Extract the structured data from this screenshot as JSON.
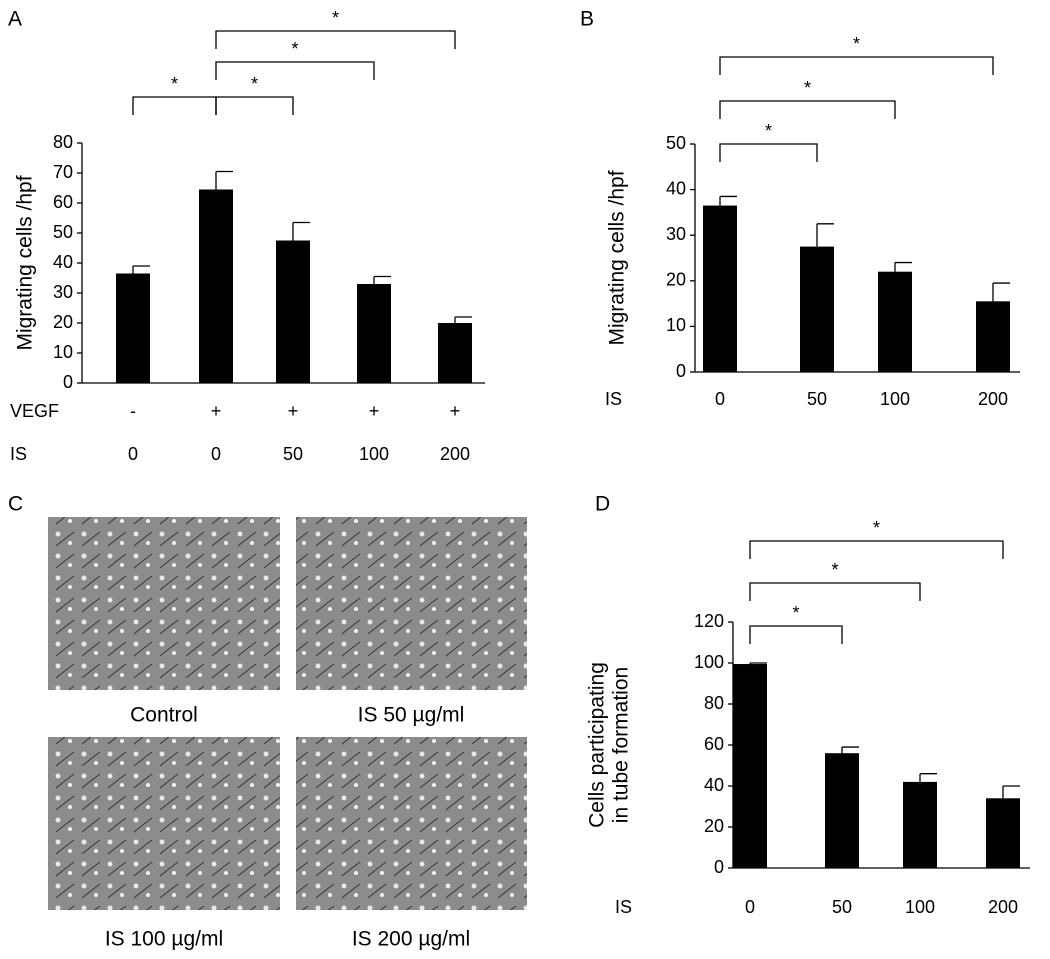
{
  "chart_data": [
    {
      "type": "bar",
      "label": "A",
      "ylabel": [
        "Migrating cells /hpf"
      ],
      "color": "#000000",
      "category_label": "IS",
      "categories": [
        "0",
        "0",
        "50",
        "100",
        "200"
      ],
      "vegf_label": "VEGF",
      "vegf": [
        "-",
        "+",
        "+",
        "+",
        "+"
      ],
      "values": [
        36.5,
        64.5,
        47.5,
        33,
        20
      ],
      "errors": [
        2.5,
        6,
        6,
        2.5,
        2
      ],
      "ylim": [
        0,
        80
      ],
      "yticks": [
        0,
        10,
        20,
        30,
        40,
        50,
        60,
        70,
        80
      ],
      "annotations": [
        "*",
        "*",
        "*",
        "*"
      ]
    },
    {
      "type": "bar",
      "label": "B",
      "ylabel": [
        "Migrating cells /hpf"
      ],
      "color": "#000000",
      "category_label": "IS",
      "categories": [
        "0",
        "50",
        "100",
        "200"
      ],
      "values": [
        36.5,
        27.5,
        22,
        15.5
      ],
      "errors": [
        2,
        5,
        2,
        4
      ],
      "ylim": [
        0,
        50
      ],
      "yticks": [
        0,
        10,
        20,
        30,
        40,
        50
      ],
      "annotations": [
        "*",
        "*",
        "*"
      ]
    },
    {
      "type": "bar",
      "label": "D",
      "ylabel": [
        "Cells participating",
        "in tube formation"
      ],
      "color": "#000000",
      "category_label": "IS",
      "categories": [
        "0",
        "50",
        "100",
        "200"
      ],
      "values": [
        99.5,
        56,
        42,
        34
      ],
      "errors": [
        0.5,
        3,
        4,
        6
      ],
      "ylim": [
        0,
        120
      ],
      "yticks": [
        0,
        20,
        40,
        60,
        80,
        100,
        120
      ],
      "annotations": [
        "*",
        "*",
        "*"
      ]
    }
  ],
  "images": {
    "label": "C",
    "captions": [
      "Control",
      "IS 50 µg/ml",
      "IS 100 µg/ml",
      "IS 200 µg/ml"
    ]
  }
}
